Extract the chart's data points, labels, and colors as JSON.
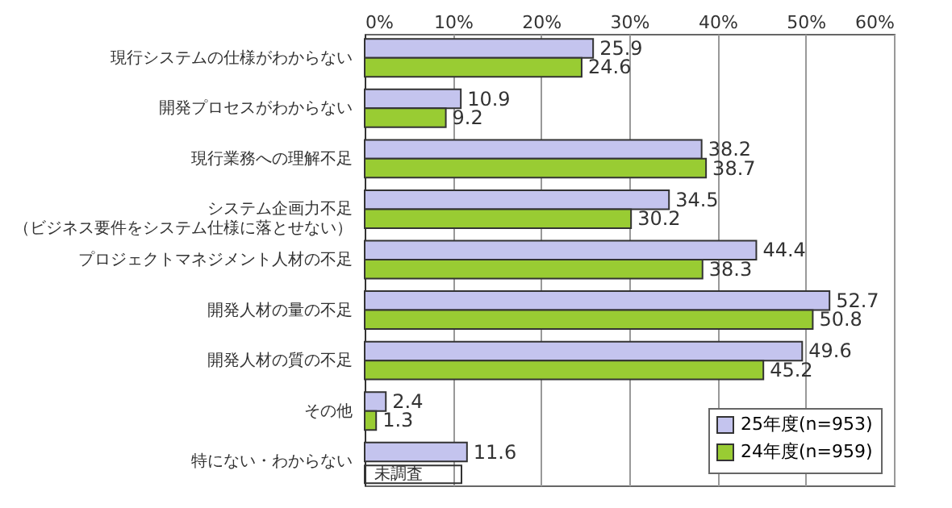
{
  "chart_data": {
    "type": "bar",
    "orientation": "horizontal",
    "categories": [
      "現行システムの仕様がわからない",
      "開発プロセスがわからない",
      "現行業務への理解不足",
      "システム企画力不足（ビジネス要件をシステム仕様に落とせない）",
      "プロジェクトマネジメント人材の不足",
      "開発人材の量の不足",
      "開発人材の質の不足",
      "その他",
      "特にない・わからない"
    ],
    "series": [
      {
        "name": "25年度(n=953)",
        "color": "#c4c4ee",
        "values": [
          25.9,
          10.9,
          38.2,
          34.5,
          44.4,
          52.7,
          49.6,
          2.4,
          11.6
        ]
      },
      {
        "name": "24年度(n=959)",
        "color": "#99cc33",
        "values": [
          24.6,
          9.2,
          38.7,
          30.2,
          38.3,
          50.8,
          45.2,
          1.3,
          null
        ]
      }
    ],
    "xlim": [
      0,
      60
    ],
    "xticks": [
      {
        "value": 0,
        "label": "0%"
      },
      {
        "value": 10,
        "label": "10%"
      },
      {
        "value": 20,
        "label": "20%"
      },
      {
        "value": 30,
        "label": "30%"
      },
      {
        "value": 40,
        "label": "40%"
      },
      {
        "value": 50,
        "label": "50%"
      },
      {
        "value": 60,
        "label": "60%"
      }
    ],
    "grid": "x",
    "legend": "bottom right",
    "data_labels": true,
    "annotations": [
      {
        "text": "未調査",
        "x": 0,
        "y": "特にない・わからない"
      }
    ]
  }
}
